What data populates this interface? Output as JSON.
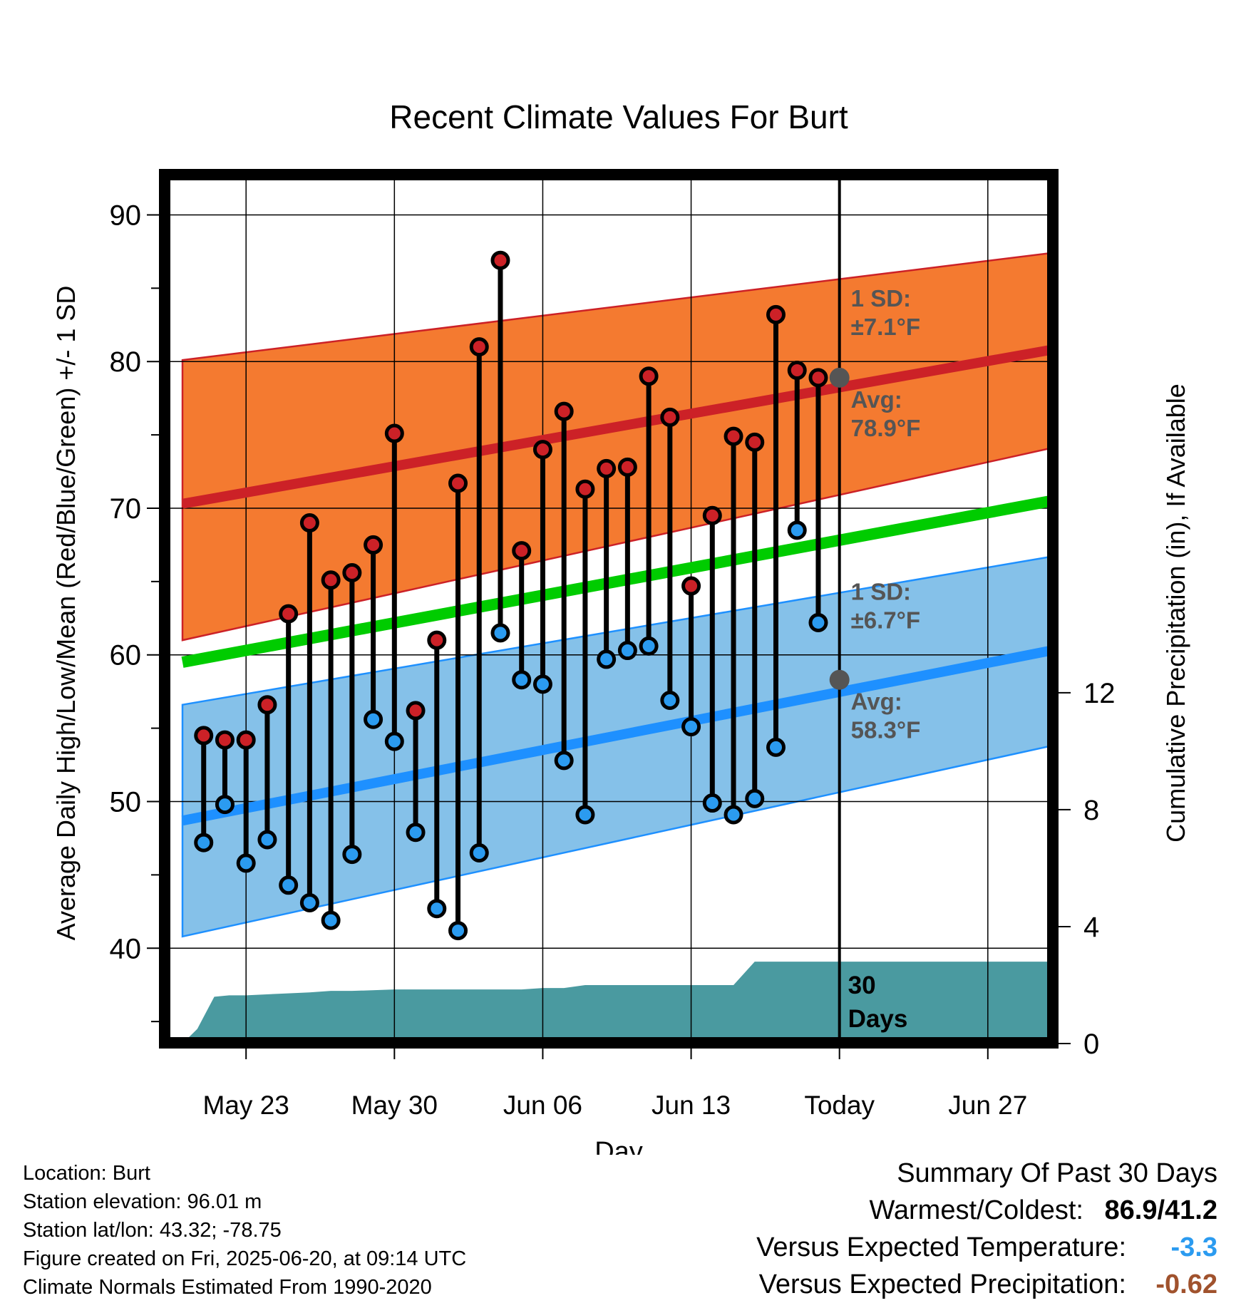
{
  "chart_data": {
    "type": "line",
    "title": "Recent Climate Values For Burt",
    "xlabel": "Day",
    "ylabel": "Average Daily High/Low/Mean (Red/Blue/Green) +/- 1 SD",
    "y2label": "Cumulative Precipitation (in), If Available",
    "x_ticks": [
      "May 23",
      "May 30",
      "Jun 06",
      "Jun 13",
      "Today",
      "Jun 27"
    ],
    "x_tick_day_index": [
      3,
      10,
      17,
      24,
      31,
      38
    ],
    "x_range_day_index": [
      0,
      41
    ],
    "y_ticks": [
      40,
      50,
      60,
      70,
      80,
      90
    ],
    "ylim": [
      33.5,
      92.5
    ],
    "y2_ticks": [
      0,
      4,
      8,
      12
    ],
    "y2lim": [
      0,
      29.6
    ],
    "today_day_index": 31,
    "normals": {
      "day_index": [
        0,
        41
      ],
      "high_avg": [
        70.3,
        80.8
      ],
      "high_upper": [
        80.1,
        87.4
      ],
      "high_lower": [
        61.0,
        74.1
      ],
      "mean_avg": [
        59.5,
        70.5
      ],
      "low_avg": [
        48.7,
        60.3
      ],
      "low_upper": [
        56.6,
        66.7
      ],
      "low_lower": [
        40.8,
        53.8
      ]
    },
    "series": [
      {
        "name": "High",
        "day_index": [
          1,
          2,
          3,
          4,
          5,
          6,
          7,
          8,
          9,
          10,
          11,
          12,
          13,
          14,
          15,
          16,
          17,
          18,
          19,
          20,
          21,
          22,
          23,
          24,
          25,
          26,
          27,
          28,
          29,
          30
        ],
        "values": [
          54.5,
          54.2,
          54.2,
          56.6,
          62.8,
          69.0,
          65.1,
          65.6,
          67.5,
          75.1,
          56.2,
          61.0,
          71.7,
          81.0,
          86.9,
          67.1,
          74.0,
          76.6,
          71.3,
          72.7,
          72.8,
          79.0,
          76.2,
          64.7,
          69.5,
          74.9,
          74.5,
          83.2,
          79.4,
          78.9
        ]
      },
      {
        "name": "Low",
        "day_index": [
          1,
          2,
          3,
          4,
          5,
          6,
          7,
          8,
          9,
          10,
          11,
          12,
          13,
          14,
          15,
          16,
          17,
          18,
          19,
          20,
          21,
          22,
          23,
          24,
          25,
          26,
          27,
          28,
          29,
          30
        ],
        "values": [
          47.2,
          49.8,
          45.8,
          47.4,
          44.3,
          43.1,
          41.9,
          46.4,
          55.6,
          54.1,
          47.9,
          42.7,
          41.2,
          46.5,
          61.5,
          58.3,
          58.0,
          52.8,
          49.1,
          59.7,
          60.3,
          60.6,
          56.9,
          55.1,
          49.9,
          49.1,
          50.2,
          53.7,
          68.5,
          62.2
        ]
      },
      {
        "name": "Cumulative Precipitation",
        "day_index": [
          0,
          0.7,
          1.5,
          2.2,
          3,
          4.5,
          6,
          7,
          8,
          10,
          12,
          14,
          16,
          17,
          18,
          19,
          20,
          23,
          26,
          27,
          28,
          40.9
        ],
        "values": [
          0,
          0.5,
          1.6,
          1.65,
          1.65,
          1.7,
          1.75,
          1.8,
          1.8,
          1.85,
          1.85,
          1.85,
          1.85,
          1.9,
          1.9,
          2.0,
          2.0,
          2.0,
          2.0,
          2.8,
          2.8,
          2.8
        ]
      }
    ],
    "annotations": {
      "high_sd_label": "1 SD:",
      "high_sd_value": "±7.1°F",
      "high_avg_label": "Avg:",
      "high_avg_value": "78.9°F",
      "low_sd_label": "1 SD:",
      "low_sd_value": "±6.7°F",
      "low_avg_label": "Avg:",
      "low_avg_value": "58.3°F",
      "precip_days_line1": "30",
      "precip_days_line2": "Days",
      "today_high_avg": 78.9,
      "today_low_avg": 58.3
    },
    "colors": {
      "high_band": "#f47a30",
      "high_line": "#cc2127",
      "mean_line": "#00cc00",
      "low_band": "#85c1e9",
      "low_line": "#1e90ff",
      "precip": "#4a9aa0",
      "high_marker": "#cc2127",
      "low_marker": "#2b9bf0",
      "annotation_text": "#555555"
    },
    "grid": true
  },
  "info": {
    "location": "Location: Burt",
    "elevation": "Station elevation: 96.01 m",
    "latlon": "Station lat/lon: 43.32; -78.75",
    "created": "Figure created on Fri, 2025-06-20, at 09:14 UTC",
    "normals": "Climate Normals Estimated From 1990-2020"
  },
  "summary": {
    "heading": "Summary Of Past 30 Days",
    "warm_cold_label": "Warmest/Coldest:",
    "warm_cold_value": "86.9/41.2",
    "temp_label": "Versus Expected Temperature:",
    "temp_value": "-3.3",
    "temp_color": "#2b9bf0",
    "precip_label": "Versus Expected Precipitation:",
    "precip_value": "-0.62",
    "precip_color": "#a0522d"
  }
}
